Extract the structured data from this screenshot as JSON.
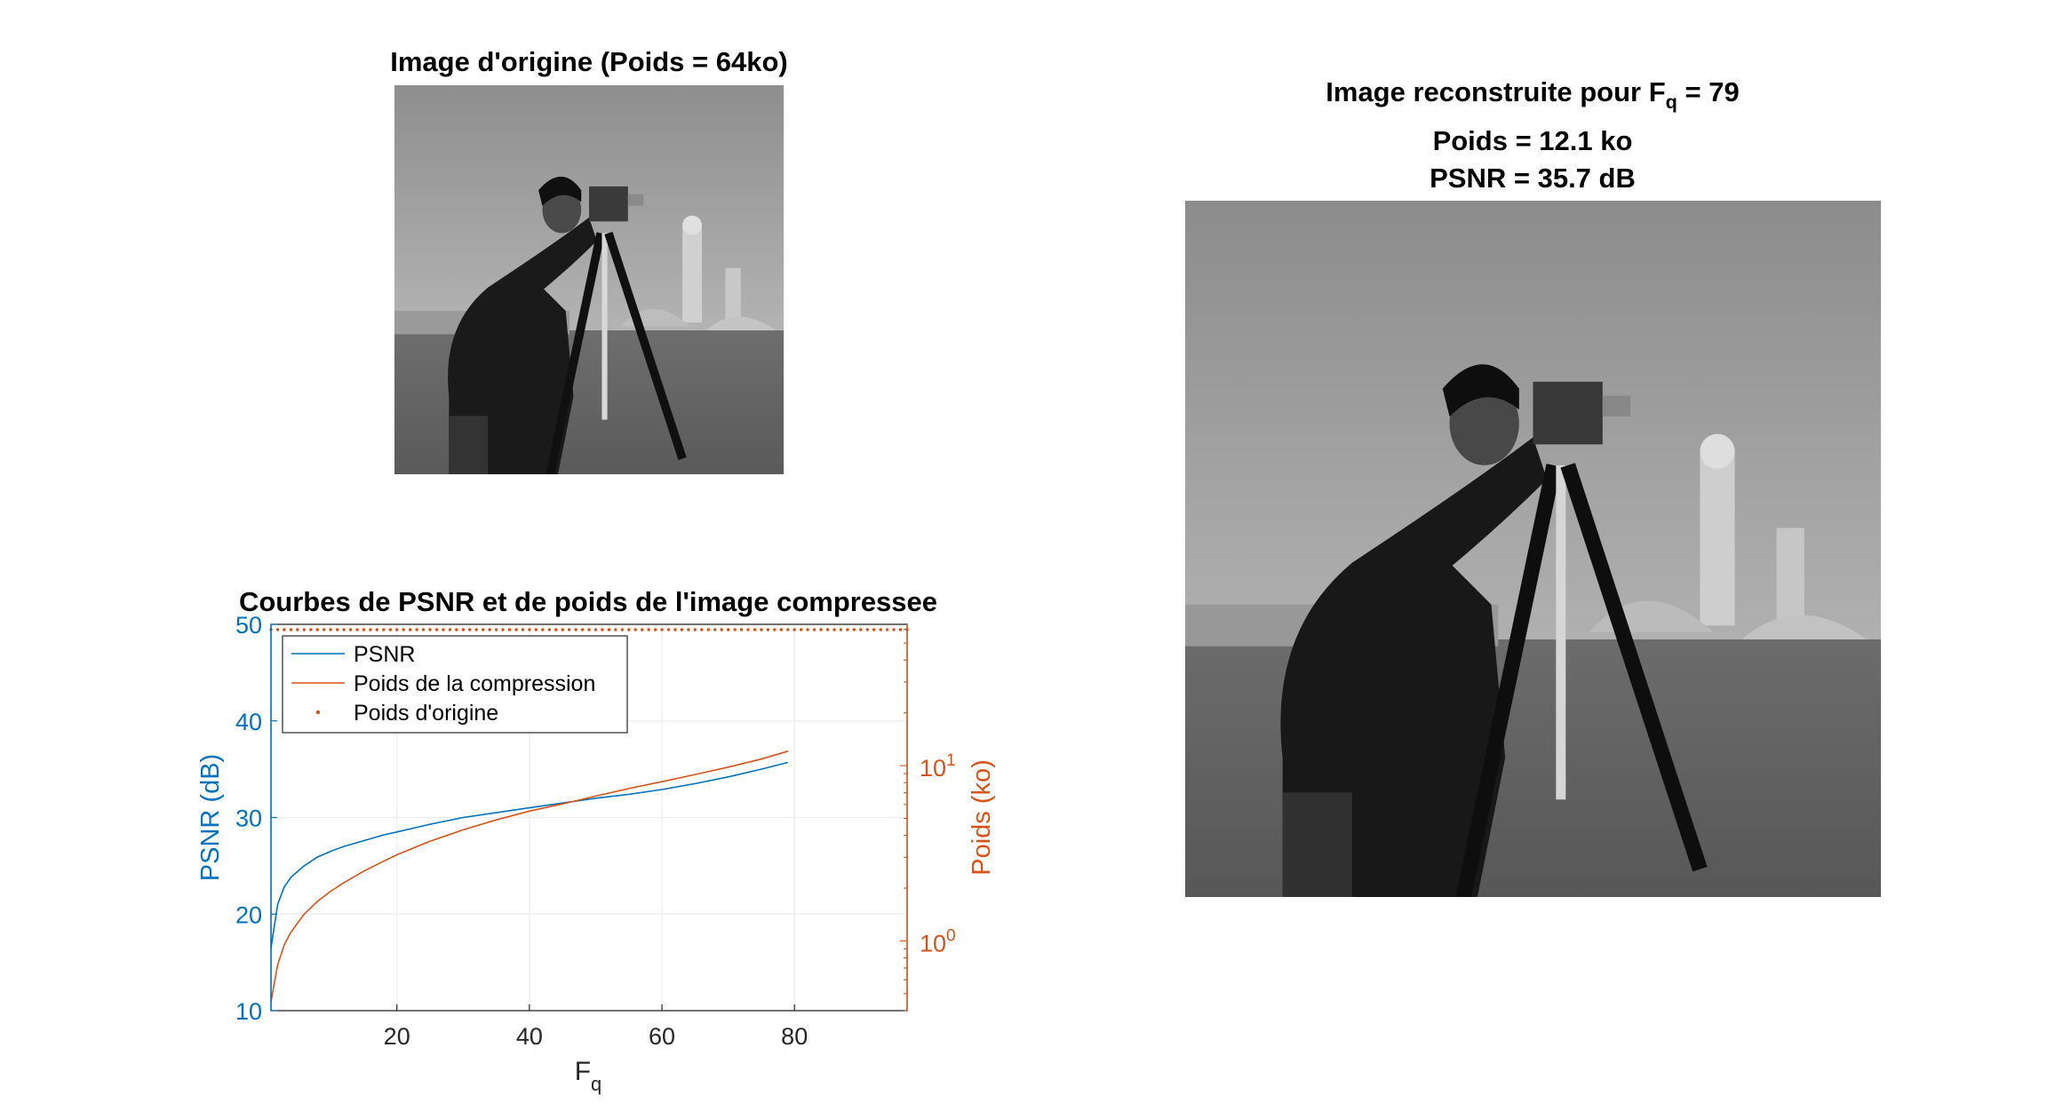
{
  "original_panel": {
    "title": "Image d'origine (Poids = 64ko)"
  },
  "reconstructed_panel": {
    "title_prefix": "Image reconstruite pour F",
    "title_sub": "q",
    "title_suffix": " = 79",
    "line2": "Poids = 12.1 ko",
    "line3": "PSNR = 35.7 dB"
  },
  "chart_data": {
    "type": "line",
    "title": "Courbes de PSNR et de poids de l'image compressee",
    "xlabel_main": "F",
    "xlabel_sub": "q",
    "xlim": [
      1,
      97
    ],
    "xticks": [
      20,
      40,
      60,
      80
    ],
    "grid": true,
    "legend_placement": "top-left",
    "left_axis": {
      "label": "PSNR (dB)",
      "ylim": [
        10,
        50
      ],
      "ticks": [
        10,
        20,
        30,
        40,
        50
      ],
      "color": "#0072BD"
    },
    "right_axis": {
      "label": "Poids (ko)",
      "scale": "log",
      "ylim": [
        0.4,
        64
      ],
      "tick_values": [
        1,
        10
      ],
      "tick_labels": [
        {
          "base": "10",
          "exp": "0"
        },
        {
          "base": "10",
          "exp": "1"
        }
      ],
      "color": "#D95319"
    },
    "series": [
      {
        "name": "PSNR",
        "axis": "left",
        "color": "#0072BD",
        "style": "line",
        "x": [
          1,
          2,
          3,
          4,
          6,
          8,
          10,
          12,
          15,
          18,
          20,
          25,
          30,
          35,
          40,
          45,
          50,
          55,
          60,
          65,
          70,
          75,
          79
        ],
        "y": [
          16.5,
          21.0,
          22.8,
          23.8,
          25.0,
          25.9,
          26.5,
          27.0,
          27.6,
          28.2,
          28.5,
          29.3,
          30.0,
          30.5,
          31.0,
          31.5,
          32.0,
          32.4,
          32.9,
          33.5,
          34.2,
          35.0,
          35.7
        ]
      },
      {
        "name": "Poids de la compression",
        "axis": "right",
        "color": "#D95319",
        "style": "line",
        "x": [
          1,
          2,
          3,
          4,
          6,
          8,
          10,
          12,
          15,
          18,
          20,
          25,
          30,
          35,
          40,
          45,
          50,
          55,
          60,
          65,
          70,
          75,
          79
        ],
        "y": [
          0.45,
          0.73,
          0.95,
          1.12,
          1.42,
          1.68,
          1.92,
          2.15,
          2.5,
          2.85,
          3.1,
          3.7,
          4.3,
          4.9,
          5.5,
          6.05,
          6.7,
          7.4,
          8.1,
          8.9,
          9.8,
          10.9,
          12.1
        ]
      },
      {
        "name": "Poids d'origine",
        "axis": "right",
        "color": "#D95319",
        "style": "dots",
        "constant": 64
      }
    ]
  }
}
